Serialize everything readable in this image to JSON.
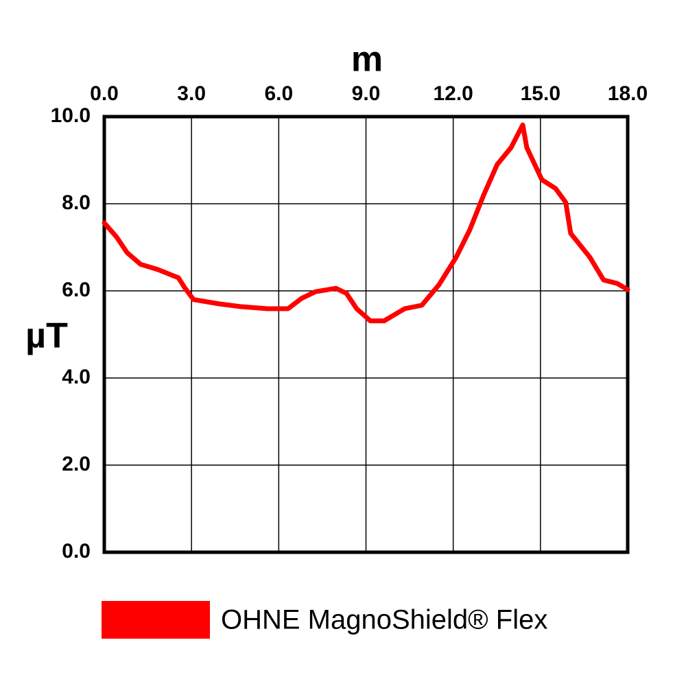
{
  "chart_data": {
    "type": "line",
    "x_label": "m",
    "y_label": "µT",
    "x": [
      0,
      0.42,
      0.78,
      1.25,
      1.84,
      2.55,
      2.78,
      3.07,
      3.96,
      4.67,
      5.61,
      6.32,
      6.79,
      7.26,
      7.97,
      8.33,
      8.68,
      9.15,
      9.62,
      10.33,
      10.92,
      11.51,
      12.1,
      12.57,
      13.04,
      13.51,
      13.99,
      14.39,
      14.53,
      15.05,
      15.52,
      15.87,
      16.04,
      16.7,
      17.17,
      17.64,
      18.0
    ],
    "series": [
      {
        "name": "OHNE  MagnoShield® Flex",
        "color": "#ff0000",
        "values": [
          7.56,
          7.24,
          6.88,
          6.61,
          6.49,
          6.3,
          6.06,
          5.8,
          5.7,
          5.64,
          5.59,
          5.59,
          5.83,
          5.98,
          6.06,
          5.94,
          5.59,
          5.31,
          5.31,
          5.59,
          5.67,
          6.14,
          6.77,
          7.4,
          8.19,
          8.9,
          9.29,
          9.81,
          9.29,
          8.55,
          8.35,
          8.03,
          7.32,
          6.77,
          6.25,
          6.17,
          6.03
        ]
      }
    ],
    "xlim": [
      0,
      18
    ],
    "ylim": [
      0,
      10
    ],
    "xticks": [
      {
        "value": 0,
        "label": "0.0"
      },
      {
        "value": 3,
        "label": "3.0"
      },
      {
        "value": 6,
        "label": "6.0"
      },
      {
        "value": 9,
        "label": "9.0"
      },
      {
        "value": 12,
        "label": "12.0"
      },
      {
        "value": 15,
        "label": "15.0"
      },
      {
        "value": 18,
        "label": "18.0"
      }
    ],
    "yticks": [
      {
        "value": 0,
        "label": "0.0"
      },
      {
        "value": 2,
        "label": "2.0"
      },
      {
        "value": 4,
        "label": "4.0"
      },
      {
        "value": 6,
        "label": "6.0"
      },
      {
        "value": 8,
        "label": "8.0"
      },
      {
        "value": 10,
        "label": "10.0"
      }
    ],
    "grid": true
  }
}
